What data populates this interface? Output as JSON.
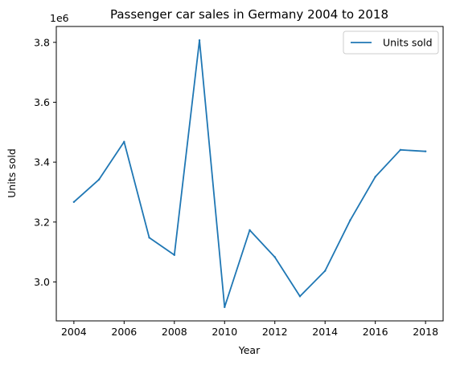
{
  "chart_data": {
    "type": "line",
    "title": "Passenger car sales in Germany 2004 to 2018",
    "xlabel": "Year",
    "ylabel": "Units sold",
    "y_offset_label": "1e6",
    "x": [
      2004,
      2005,
      2006,
      2007,
      2008,
      2009,
      2010,
      2011,
      2012,
      2013,
      2014,
      2015,
      2016,
      2017,
      2018
    ],
    "series": [
      {
        "name": "Units sold",
        "color": "#1f77b4",
        "values": [
          3267000,
          3342000,
          3468000,
          3148000,
          3090000,
          3807000,
          2916000,
          3173000,
          3083000,
          2952000,
          3037000,
          3206000,
          3351000,
          3441000,
          3436000
        ]
      }
    ],
    "x_ticks": [
      "2004",
      "2006",
      "2008",
      "2010",
      "2012",
      "2014",
      "2016",
      "2018"
    ],
    "y_ticks": [
      "3.0",
      "3.2",
      "3.4",
      "3.6",
      "3.8"
    ],
    "xlim": [
      2003.3,
      2018.7
    ],
    "ylim": [
      2870000,
      3853000
    ],
    "legend_position": "top-right",
    "grid": false
  }
}
